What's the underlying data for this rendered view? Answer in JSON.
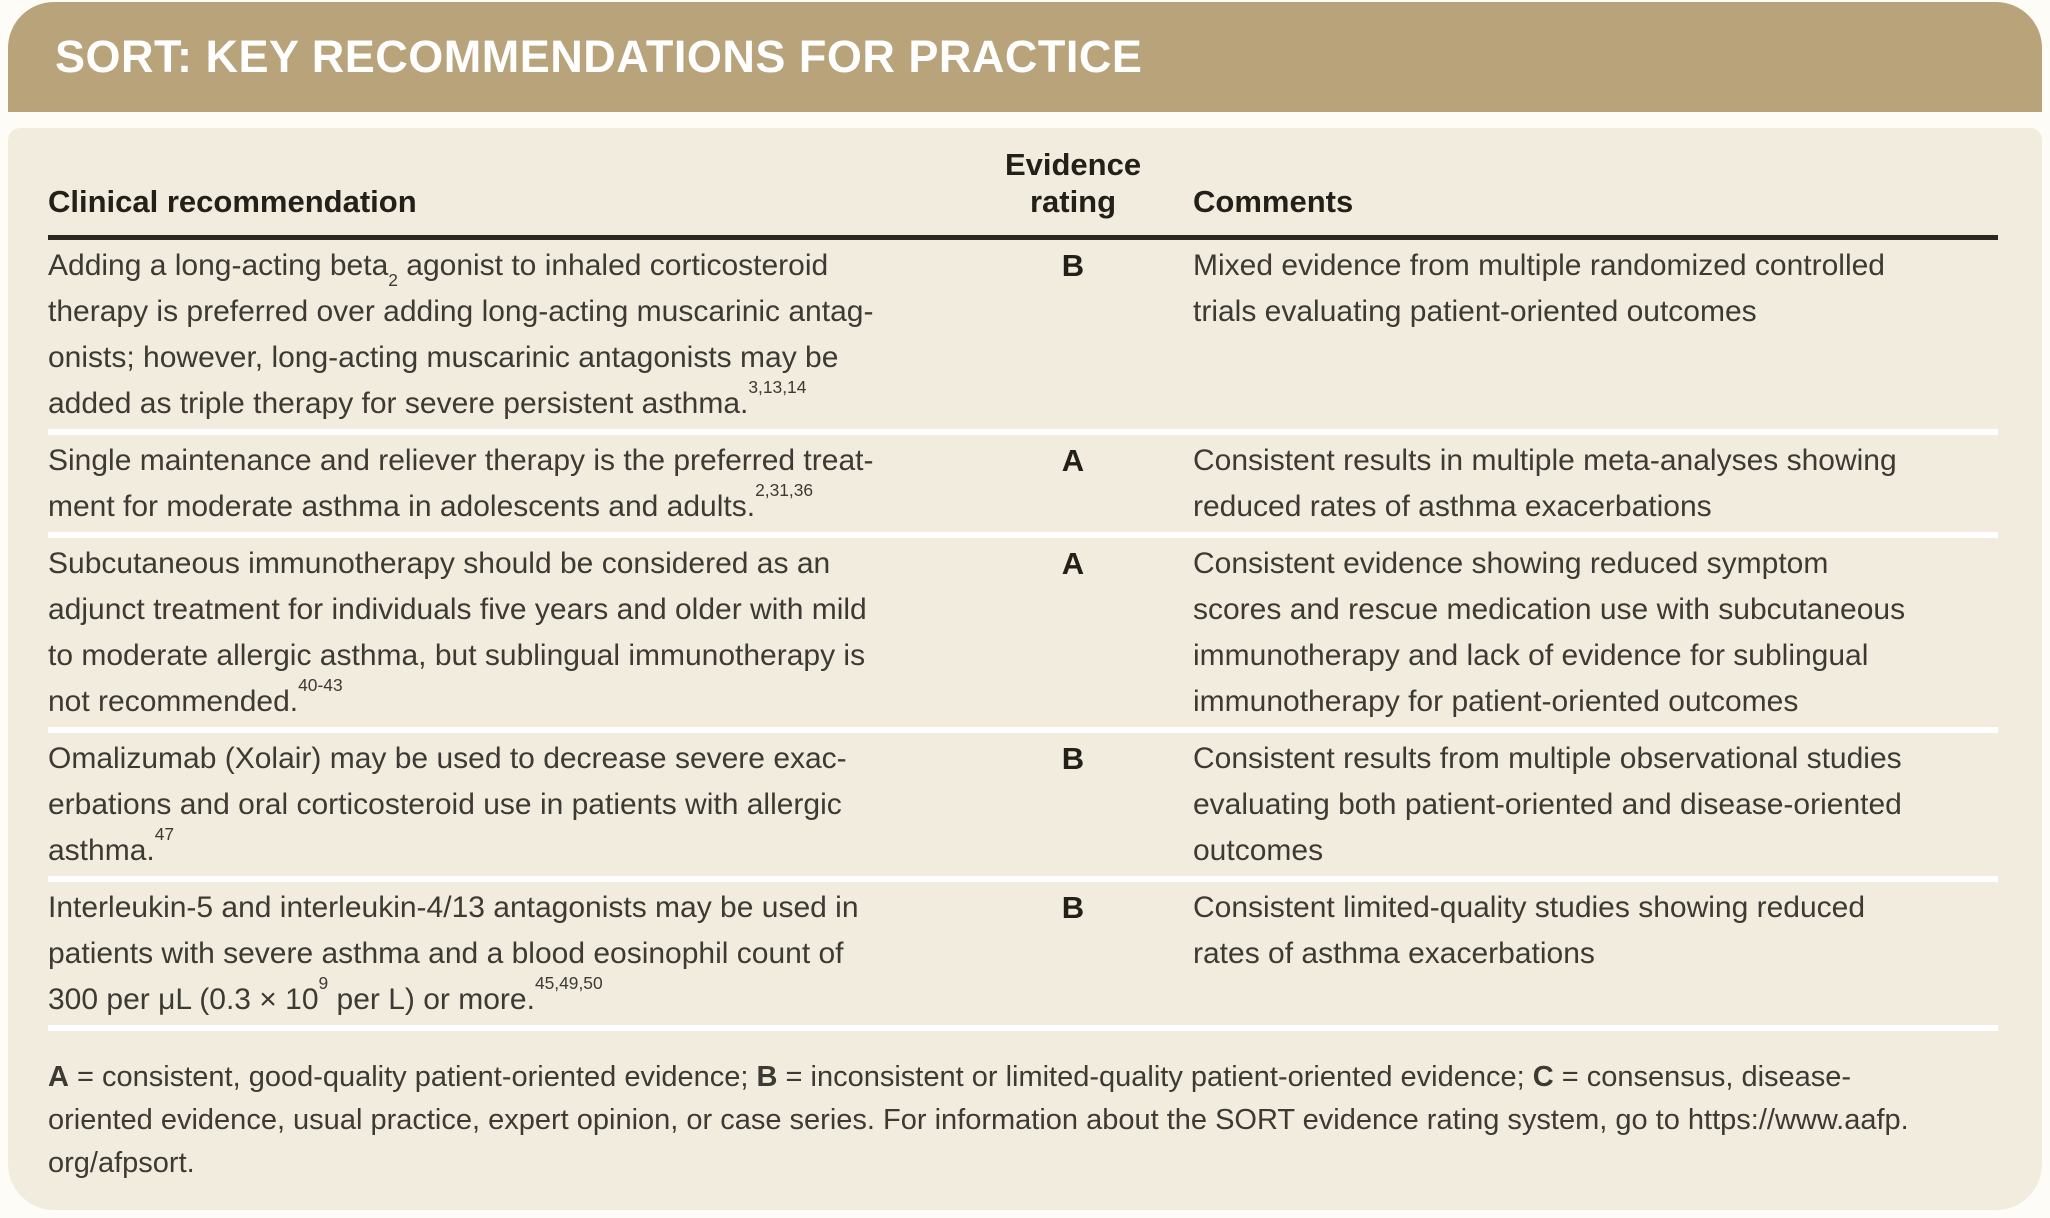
{
  "title": "SORT: KEY RECOMMENDATIONS FOR PRACTICE",
  "colors": {
    "header_bar": "#b8a37a",
    "panel_background": "#f2ecdf",
    "title_text": "#ffffff",
    "body_text": "#3d3a33",
    "rule": "#2b2822"
  },
  "table": {
    "header": {
      "clinical": "Clinical recommendation",
      "evidence_line1": "Evidence",
      "evidence_line2": "rating",
      "comments": "Comments"
    },
    "rows": [
      {
        "recommendation": [
          [
            {
              "t": "Adding a long-acting beta"
            },
            {
              "t": "2",
              "s": "sub"
            },
            {
              "t": " agonist to inhaled corticosteroid"
            }
          ],
          [
            {
              "t": "therapy is preferred over adding long-acting muscarinic antag-"
            }
          ],
          [
            {
              "t": "onists; however, long-acting muscarinic antagonists may be"
            }
          ],
          [
            {
              "t": "added as triple therapy for severe persistent asthma."
            },
            {
              "t": "3,13,14",
              "s": "sup"
            }
          ]
        ],
        "rating": "B",
        "comments": [
          [
            {
              "t": "Mixed evidence from multiple randomized controlled"
            }
          ],
          [
            {
              "t": "trials evaluating patient-oriented outcomes"
            }
          ]
        ]
      },
      {
        "recommendation": [
          [
            {
              "t": "Single maintenance and reliever therapy is the preferred treat-"
            }
          ],
          [
            {
              "t": "ment for moderate asthma in adolescents and adults."
            },
            {
              "t": "2,31,36",
              "s": "sup"
            }
          ]
        ],
        "rating": "A",
        "comments": [
          [
            {
              "t": "Consistent results in multiple meta-analyses showing"
            }
          ],
          [
            {
              "t": "reduced rates of asthma exacerbations"
            }
          ]
        ]
      },
      {
        "recommendation": [
          [
            {
              "t": "Subcutaneous immunotherapy should be considered as an"
            }
          ],
          [
            {
              "t": "adjunct treatment for individuals five years and older with mild"
            }
          ],
          [
            {
              "t": "to moderate allergic asthma, but sublingual immunotherapy is"
            }
          ],
          [
            {
              "t": "not recommended."
            },
            {
              "t": "40-43",
              "s": "sup"
            }
          ]
        ],
        "rating": "A",
        "comments": [
          [
            {
              "t": "Consistent evidence showing reduced symptom"
            }
          ],
          [
            {
              "t": "scores and rescue medication use with subcutaneous"
            }
          ],
          [
            {
              "t": "immunotherapy and lack of evidence for sublingual"
            }
          ],
          [
            {
              "t": "immunotherapy for patient-oriented outcomes"
            }
          ]
        ]
      },
      {
        "recommendation": [
          [
            {
              "t": "Omalizumab (Xolair) may be used to decrease severe exac-"
            }
          ],
          [
            {
              "t": "erbations and oral corticosteroid use in patients with allergic"
            }
          ],
          [
            {
              "t": "asthma."
            },
            {
              "t": "47",
              "s": "sup"
            }
          ]
        ],
        "rating": "B",
        "comments": [
          [
            {
              "t": "Consistent results from multiple observational studies"
            }
          ],
          [
            {
              "t": "evaluating both patient-oriented and disease-oriented"
            }
          ],
          [
            {
              "t": "outcomes"
            }
          ]
        ]
      },
      {
        "recommendation": [
          [
            {
              "t": "Interleukin-5 and interleukin-4/13 antagonists may be used in"
            }
          ],
          [
            {
              "t": "patients with severe asthma and a blood eosinophil count of"
            }
          ],
          [
            {
              "t": "300 per μL (0.3 × 10"
            },
            {
              "t": "9",
              "s": "sup"
            },
            {
              "t": " per L) or more."
            },
            {
              "t": "45,49,50",
              "s": "sup"
            }
          ]
        ],
        "rating": "B",
        "comments": [
          [
            {
              "t": "Consistent limited-quality studies showing reduced"
            }
          ],
          [
            {
              "t": "rates of asthma exacerbations"
            }
          ]
        ]
      }
    ]
  },
  "footnote": {
    "lines": [
      [
        {
          "t": "A",
          "s": "b"
        },
        {
          "t": " = consistent, good-quality patient-oriented evidence; "
        },
        {
          "t": "B",
          "s": "b"
        },
        {
          "t": " = inconsistent or limited-quality patient-oriented evidence; "
        },
        {
          "t": "C",
          "s": "b"
        },
        {
          "t": " = consensus, disease-"
        }
      ],
      [
        {
          "t": "oriented evidence, usual practice, expert opinion, or case series. For information about the SORT evidence rating system, go to https://www.aafp."
        }
      ],
      [
        {
          "t": "org/afpsort."
        }
      ]
    ]
  }
}
